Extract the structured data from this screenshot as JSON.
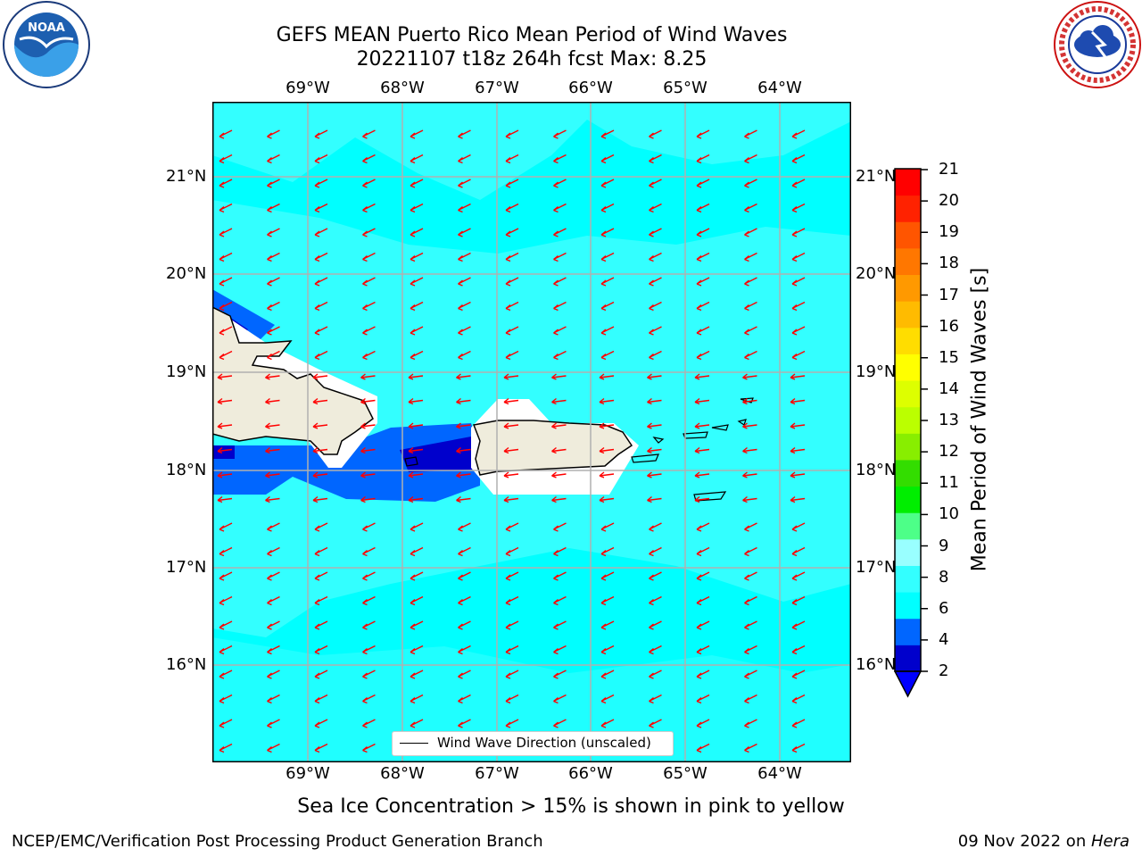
{
  "title": {
    "line1": "GEFS MEAN Puerto Rico Mean Period of Wind Waves",
    "line2": "20221107 t18z 264h fcst   Max: 8.25"
  },
  "longitudes": [
    "69°W",
    "68°W",
    "67°W",
    "66°W",
    "65°W",
    "64°W"
  ],
  "latitudes": [
    "21°N",
    "20°N",
    "19°N",
    "18°N",
    "17°N",
    "16°N"
  ],
  "legend": {
    "label": "Wind Wave Direction (unscaled)"
  },
  "colorbar": {
    "title": "Mean Period of Wind Waves [s]",
    "ticks": [
      "21",
      "20",
      "19",
      "18",
      "17",
      "16",
      "15",
      "14",
      "13",
      "12",
      "11",
      "10",
      "9",
      "8",
      "6",
      "4",
      "2"
    ],
    "colors": [
      "#0000cc",
      "#0066ff",
      "#00ffff",
      "#33ffff",
      "#99ffff",
      "#4dff88",
      "#00ee00",
      "#33dd00",
      "#88ee00",
      "#bbff00",
      "#ddff00",
      "#ffff00",
      "#ffdd00",
      "#ffbb00",
      "#ff9900",
      "#ff7700",
      "#ff5500",
      "#ff2200",
      "#ff0000"
    ]
  },
  "map": {
    "sea_color": "#00ffff",
    "land_color": "#efecdc",
    "arrow_color": "#ff0000"
  },
  "logos": {
    "noaa": "NOAA",
    "nws": "NATIONAL WEATHER SERVICE"
  },
  "note": "Sea Ice Concentration > 15% is shown in pink to yellow",
  "footer": {
    "left": "NCEP/EMC/Verification Post Processing Product Generation Branch",
    "right_date": "09 Nov 2022 on ",
    "right_host": "Hera"
  }
}
